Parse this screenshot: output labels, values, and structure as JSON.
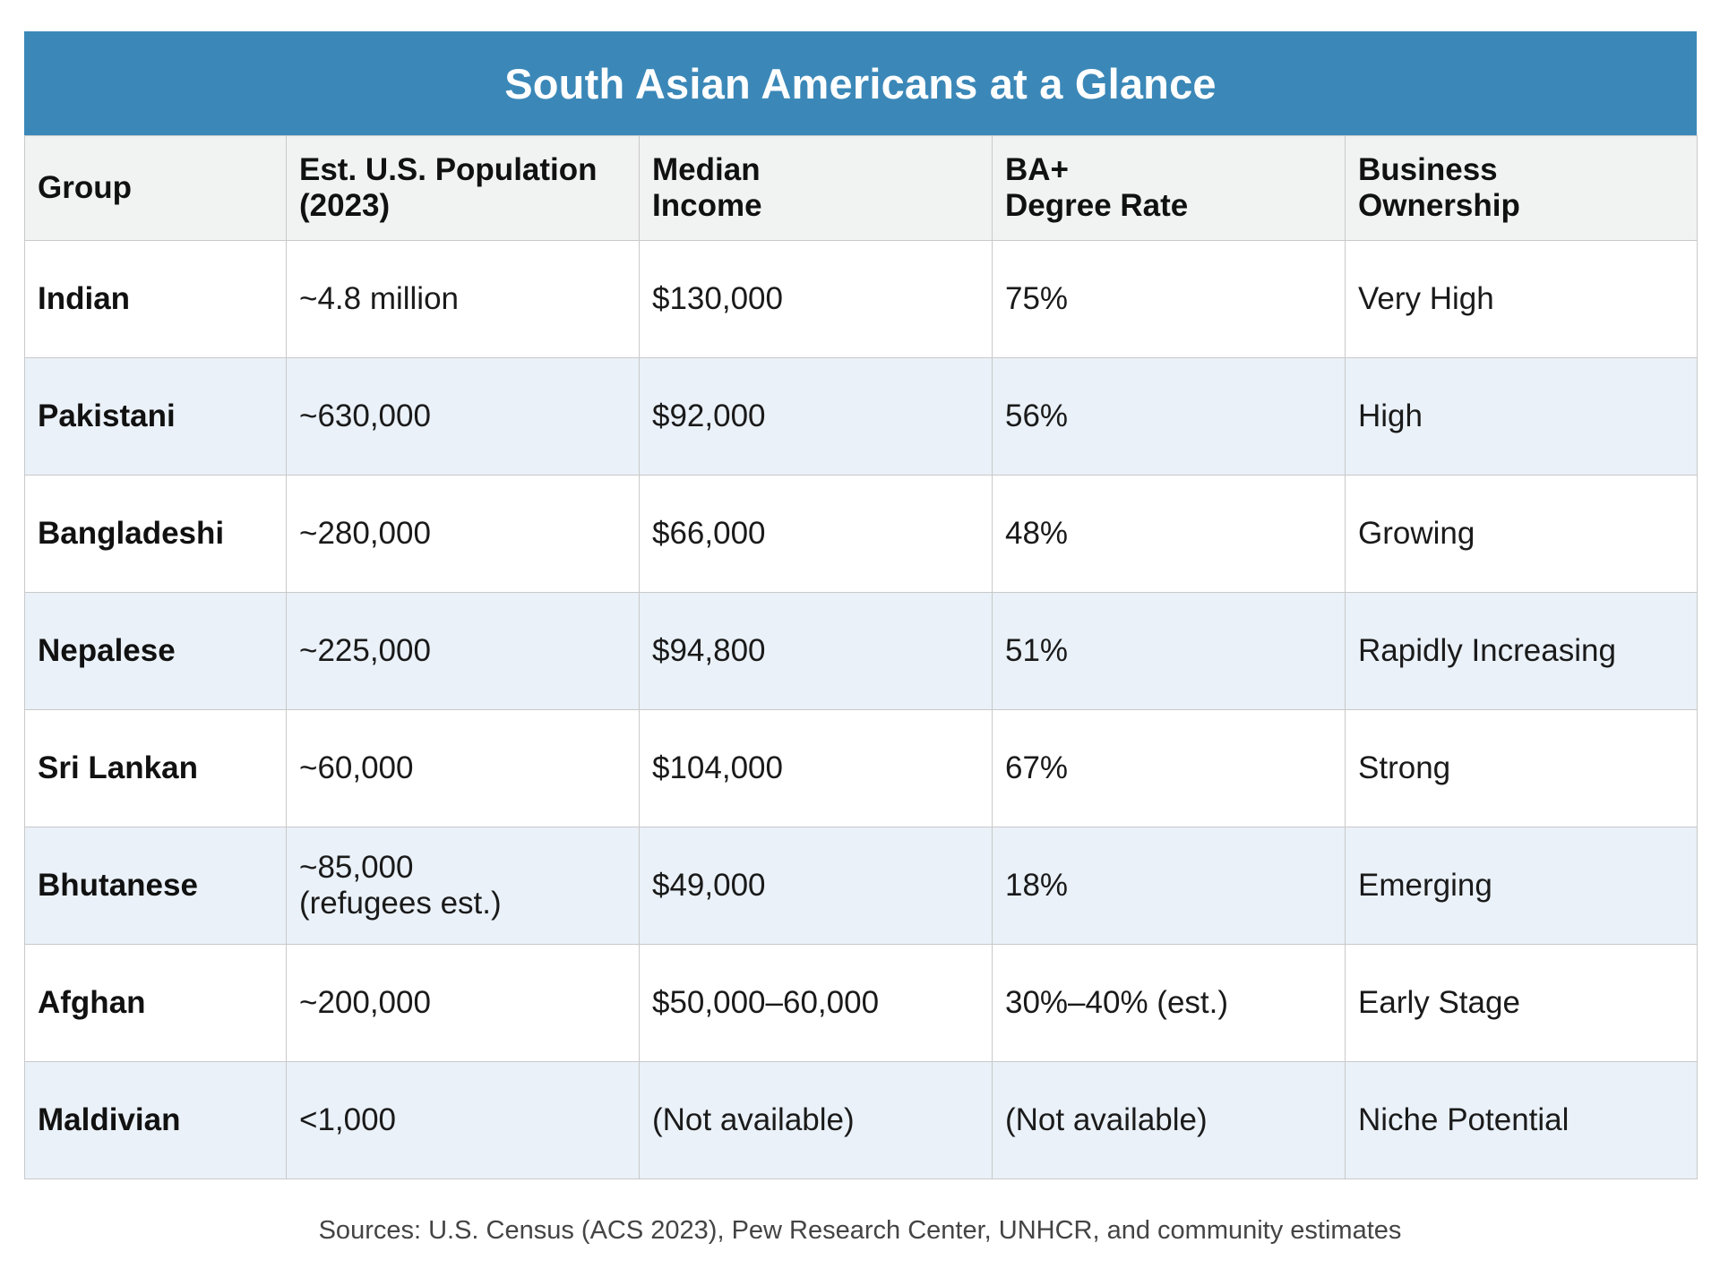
{
  "title": "South Asian Americans at a Glance",
  "headers": {
    "group": "Group",
    "population_line1": "Est. U.S. Population",
    "population_line2": "(2023)",
    "income_line1": "Median",
    "income_line2": "Income",
    "degree_line1": "BA+",
    "degree_line2": "Degree Rate",
    "business_line1": "Business",
    "business_line2": "Ownership"
  },
  "rows": [
    {
      "group": "Indian",
      "population": "~4.8 million",
      "population_note": "",
      "income": "$130,000",
      "degree": "75%",
      "business": "Very High"
    },
    {
      "group": "Pakistani",
      "population": "~630,000",
      "population_note": "",
      "income": "$92,000",
      "degree": "56%",
      "business": "High"
    },
    {
      "group": "Bangladeshi",
      "population": "~280,000",
      "population_note": "",
      "income": "$66,000",
      "degree": "48%",
      "business": "Growing"
    },
    {
      "group": "Nepalese",
      "population": "~225,000",
      "population_note": "",
      "income": "$94,800",
      "degree": "51%",
      "business": "Rapidly Increasing"
    },
    {
      "group": "Sri Lankan",
      "population": "~60,000",
      "population_note": "",
      "income": "$104,000",
      "degree": "67%",
      "business": "Strong"
    },
    {
      "group": "Bhutanese",
      "population": "~85,000",
      "population_note": "(refugees est.)",
      "income": "$49,000",
      "degree": "18%",
      "business": "Emerging"
    },
    {
      "group": "Afghan",
      "population": "~200,000",
      "population_note": "",
      "income": "$50,000–60,000",
      "degree": "30%–40% (est.)",
      "business": "Early Stage"
    },
    {
      "group": "Maldivian",
      "population": "<1,000",
      "population_note": "",
      "income": "(Not available)",
      "degree": "(Not available)",
      "business": "Niche Potential"
    }
  ],
  "sources": "Sources: U.S. Census (ACS 2023), Pew Research Center, UNHCR, and community estimates",
  "colors": {
    "title_bar": "#3b88b8",
    "header_bg": "#f1f2f2",
    "row_alt_bg": "#eaf1f8",
    "border": "#c9c9c9"
  }
}
